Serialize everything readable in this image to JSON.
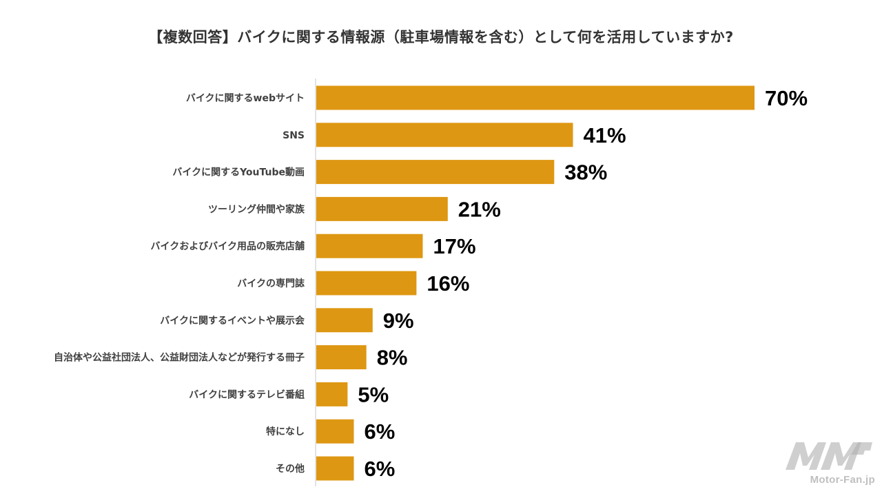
{
  "chart_data": {
    "type": "bar",
    "orientation": "horizontal",
    "title": "【複数回答】バイクに関する情報源（駐車場情報を含む）として何を活用していますか?",
    "categories": [
      "バイクに関するwebサイト",
      "SNS",
      "バイクに関するYouTube動画",
      "ツーリング仲間や家族",
      "バイクおよびバイク用品の販売店舗",
      "バイクの専門誌",
      "バイクに関するイベントや展示会",
      "自治体や公益社団法人、公益財団法人などが発行する冊子",
      "バイクに関するテレビ番組",
      "特になし",
      "その他"
    ],
    "values": [
      70,
      41,
      38,
      21,
      17,
      16,
      9,
      8,
      5,
      6,
      6
    ],
    "value_labels": [
      "70%",
      "41%",
      "38%",
      "21%",
      "17%",
      "16%",
      "9%",
      "8%",
      "5%",
      "6%",
      "6%"
    ],
    "unit": "%",
    "xlim": [
      0,
      70
    ],
    "grid": false,
    "legend": "none",
    "bar_color": "#DE9712",
    "axis_color": "#D9D9D9"
  },
  "watermark": {
    "logo_icon": "mf-logo-icon",
    "text": "Motor-Fan.jp"
  }
}
